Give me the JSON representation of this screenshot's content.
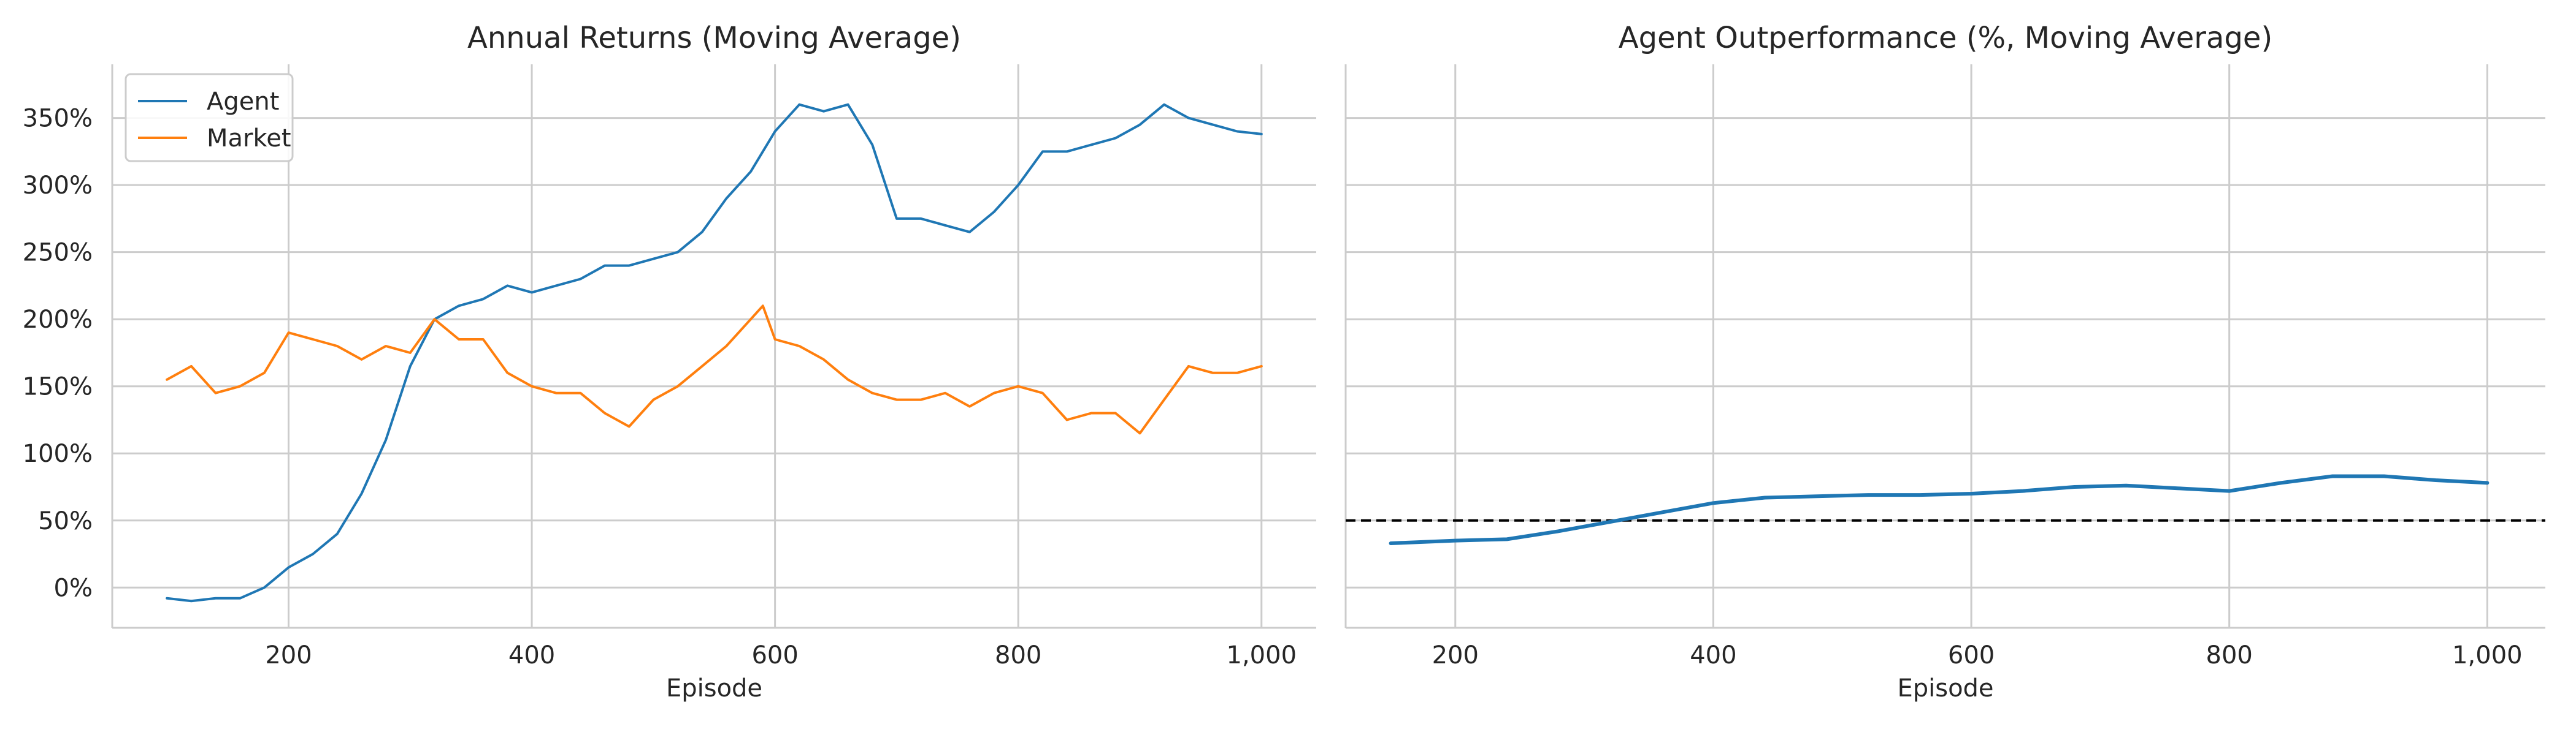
{
  "chart_data": [
    {
      "type": "line",
      "title": "Annual Returns (Moving Average)",
      "xlabel": "Episode",
      "ylabel": "",
      "xlim": [
        55,
        1045
      ],
      "ylim": [
        -30,
        390
      ],
      "xticks": [
        200,
        400,
        600,
        800,
        1000
      ],
      "xtick_labels": [
        "200",
        "400",
        "600",
        "800",
        "1,000"
      ],
      "yticks": [
        0,
        50,
        100,
        150,
        200,
        250,
        300,
        350
      ],
      "ytick_labels": [
        "0%",
        "50%",
        "100%",
        "150%",
        "200%",
        "250%",
        "300%",
        "350%"
      ],
      "grid": true,
      "legend": "top-left",
      "series": [
        {
          "name": "Agent",
          "color": "#1f77b4",
          "x": [
            100,
            120,
            140,
            160,
            180,
            200,
            220,
            240,
            260,
            280,
            300,
            320,
            340,
            360,
            380,
            400,
            420,
            440,
            460,
            480,
            500,
            520,
            540,
            560,
            580,
            600,
            620,
            640,
            660,
            680,
            700,
            720,
            740,
            760,
            780,
            800,
            820,
            840,
            860,
            880,
            900,
            920,
            940,
            960,
            980,
            1000
          ],
          "y": [
            -8,
            -10,
            -8,
            -8,
            0,
            15,
            25,
            40,
            70,
            110,
            165,
            200,
            210,
            215,
            225,
            220,
            225,
            230,
            240,
            240,
            245,
            250,
            265,
            290,
            310,
            340,
            360,
            355,
            360,
            330,
            275,
            275,
            270,
            265,
            280,
            300,
            325,
            325,
            330,
            335,
            345,
            360,
            350,
            345,
            340,
            338
          ]
        },
        {
          "name": "Market",
          "color": "#ff7f0e",
          "x": [
            100,
            120,
            140,
            160,
            180,
            200,
            220,
            240,
            260,
            280,
            300,
            320,
            340,
            360,
            380,
            400,
            420,
            440,
            460,
            480,
            500,
            520,
            540,
            560,
            580,
            590,
            600,
            620,
            640,
            660,
            680,
            700,
            720,
            740,
            760,
            780,
            800,
            820,
            840,
            860,
            880,
            900,
            920,
            940,
            960,
            980,
            1000
          ],
          "y": [
            155,
            165,
            145,
            150,
            160,
            190,
            185,
            180,
            170,
            180,
            175,
            200,
            185,
            185,
            160,
            150,
            145,
            145,
            130,
            120,
            140,
            150,
            165,
            180,
            200,
            210,
            185,
            180,
            170,
            155,
            145,
            140,
            140,
            145,
            135,
            145,
            150,
            145,
            125,
            130,
            130,
            115,
            140,
            165,
            160,
            160,
            165
          ]
        }
      ]
    },
    {
      "type": "line",
      "title": "Agent Outperformance (%, Moving Average)",
      "xlabel": "Episode",
      "ylabel": "",
      "xlim": [
        115,
        1045
      ],
      "ylim": [
        -30,
        390
      ],
      "xticks": [
        200,
        400,
        600,
        800,
        1000
      ],
      "xtick_labels": [
        "200",
        "400",
        "600",
        "800",
        "1,000"
      ],
      "grid": true,
      "reference_line": {
        "y": 50,
        "style": "dashed",
        "color": "#000000"
      },
      "series": [
        {
          "color": "#1f77b4",
          "x": [
            150,
            200,
            240,
            280,
            320,
            360,
            400,
            440,
            480,
            520,
            560,
            600,
            640,
            680,
            720,
            760,
            800,
            840,
            880,
            920,
            960,
            1000
          ],
          "y": [
            33,
            35,
            36,
            42,
            49,
            56,
            63,
            67,
            68,
            69,
            69,
            70,
            72,
            75,
            76,
            74,
            72,
            78,
            83,
            83,
            80,
            78
          ]
        }
      ]
    }
  ]
}
